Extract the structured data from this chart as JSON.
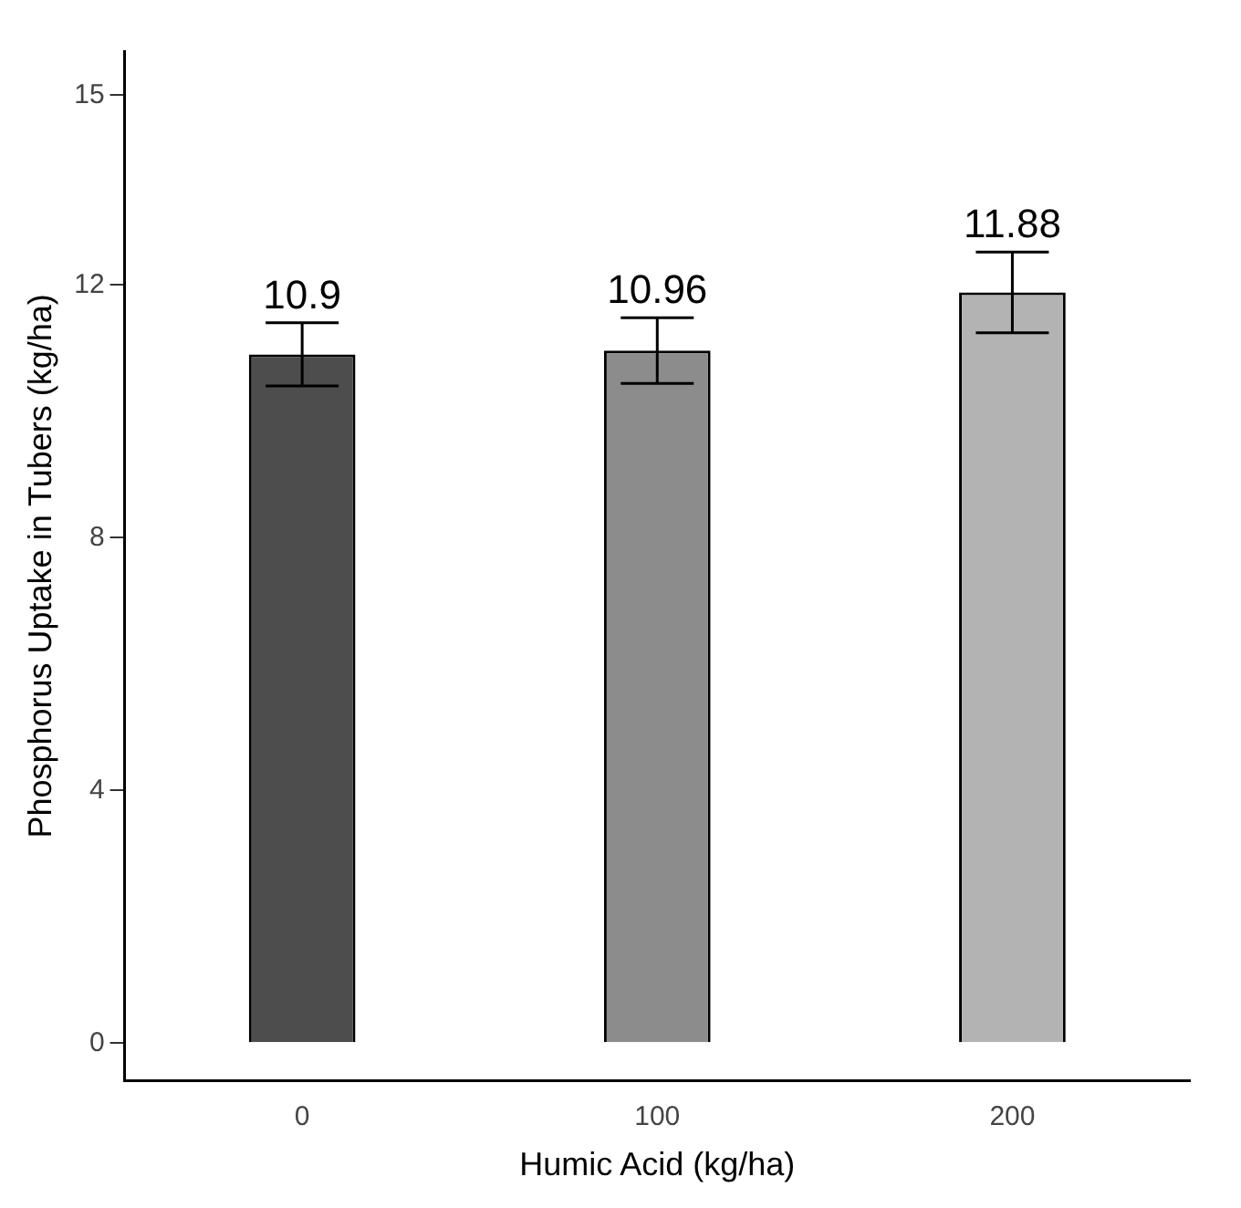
{
  "chart_data": {
    "type": "bar",
    "xlabel": "Humic Acid (kg/ha)",
    "ylabel": "Phosphorus Uptake in Tubers (kg/ha)",
    "categories": [
      "0",
      "100",
      "200"
    ],
    "values": [
      10.9,
      10.96,
      11.88
    ],
    "colors": [
      "#4d4d4d",
      "#8c8c8c",
      "#b3b3b3"
    ],
    "errors": [
      0.5,
      0.52,
      0.64
    ],
    "data_labels": true,
    "ylim": [
      -0.6,
      15.7
    ],
    "yticks": [
      0,
      4,
      8,
      12,
      15
    ],
    "grid": false,
    "legend": false
  }
}
